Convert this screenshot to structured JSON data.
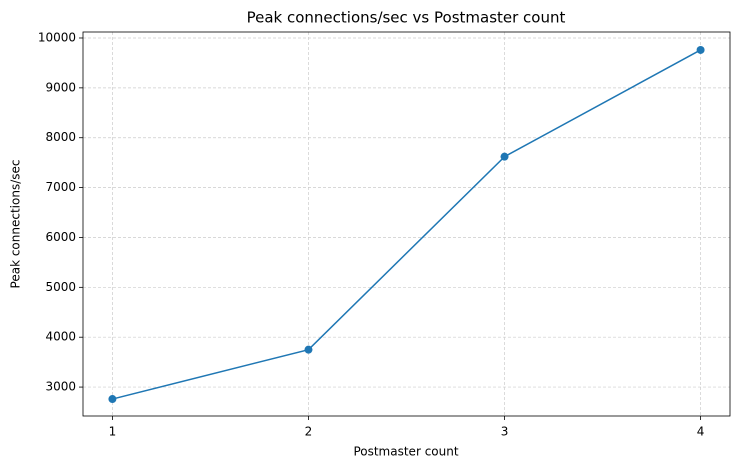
{
  "chart_data": {
    "type": "line",
    "title": "Peak connections/sec vs Postmaster count",
    "x_label": "Postmaster count",
    "y_label": "Peak connections/sec",
    "x": [
      1,
      2,
      3,
      4
    ],
    "series": [
      {
        "name": "Peak connections/sec",
        "color": "#1f77b4",
        "values": [
          2760,
          3750,
          7620,
          9760
        ]
      }
    ],
    "xlim": [
      0.85,
      4.15
    ],
    "xticks": [
      1,
      2,
      3,
      4
    ],
    "ylim": [
      2420,
      10120
    ],
    "yticks": [
      3000,
      4000,
      5000,
      6000,
      7000,
      8000,
      9000,
      10000
    ],
    "grid": true
  }
}
